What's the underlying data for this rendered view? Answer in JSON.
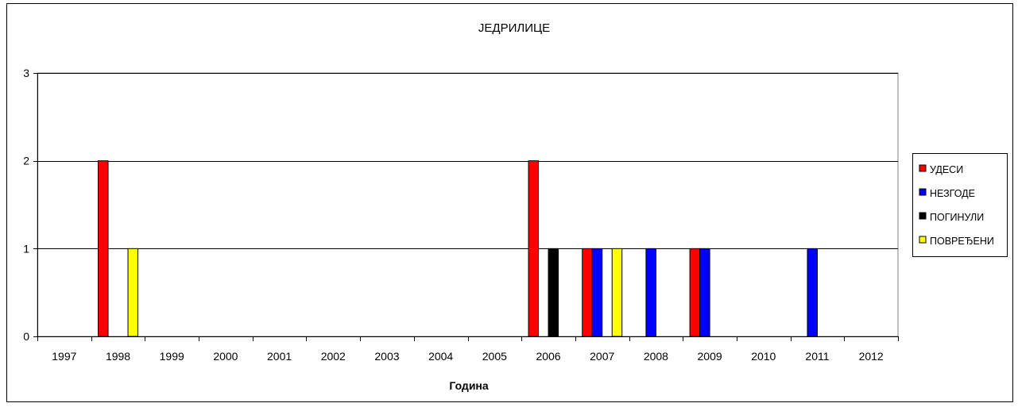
{
  "chart_data": {
    "type": "bar",
    "title": "ЈЕДРИЛИЦЕ",
    "xlabel": "Година",
    "ylabel": "",
    "ylim": [
      0,
      3
    ],
    "yticks": [
      "0",
      "1",
      "2",
      "3"
    ],
    "grid": true,
    "legend_position": "right",
    "categories": [
      "1997",
      "1998",
      "1999",
      "2000",
      "2001",
      "2002",
      "2003",
      "2004",
      "2005",
      "2006",
      "2007",
      "2008",
      "2009",
      "2010",
      "2011",
      "2012"
    ],
    "series": [
      {
        "name": "УДЕСИ",
        "color": "#ff0000",
        "values": [
          0,
          2,
          0,
          0,
          0,
          0,
          0,
          0,
          0,
          2,
          1,
          0,
          1,
          0,
          0,
          0
        ]
      },
      {
        "name": "НЕЗГОДЕ",
        "color": "#0000ff",
        "values": [
          0,
          0,
          0,
          0,
          0,
          0,
          0,
          0,
          0,
          0,
          1,
          1,
          1,
          0,
          1,
          0
        ]
      },
      {
        "name": "ПОГИНУЛИ",
        "color": "#000000",
        "values": [
          0,
          0,
          0,
          0,
          0,
          0,
          0,
          0,
          0,
          1,
          0,
          0,
          0,
          0,
          0,
          0
        ]
      },
      {
        "name": "ПОВРЕЂЕНИ",
        "color": "#ffff00",
        "values": [
          0,
          1,
          0,
          0,
          0,
          0,
          0,
          0,
          0,
          0,
          1,
          0,
          0,
          0,
          0,
          0
        ]
      }
    ]
  }
}
